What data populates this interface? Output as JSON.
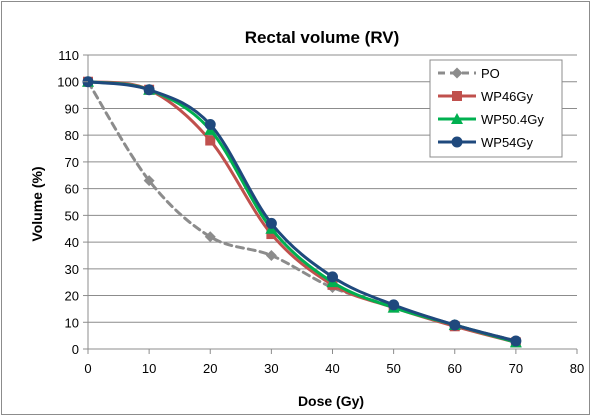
{
  "chart_data": {
    "type": "line",
    "title": "Rectal volume (RV)",
    "xlabel": "Dose (Gy)",
    "ylabel": "Volume (%)",
    "xlim": [
      0,
      80
    ],
    "ylim": [
      0,
      110
    ],
    "xticks": [
      0,
      10,
      20,
      30,
      40,
      50,
      60,
      70,
      80
    ],
    "yticks": [
      0,
      10,
      20,
      30,
      40,
      50,
      60,
      70,
      80,
      90,
      100,
      110
    ],
    "grid": "horizontal",
    "legend_position": "top-right",
    "series": [
      {
        "name": "PO",
        "color": "#8c8c8c",
        "marker": "diamond",
        "dashed": true,
        "x": [
          0,
          10,
          20,
          30,
          40,
          50,
          60,
          70
        ],
        "y": [
          100,
          63,
          42,
          35,
          23,
          16,
          9,
          3
        ]
      },
      {
        "name": "WP46Gy",
        "color": "#c0504d",
        "marker": "square",
        "dashed": false,
        "x": [
          0,
          10,
          20,
          30,
          40,
          50,
          60,
          70
        ],
        "y": [
          100,
          97,
          78,
          43,
          24,
          15.5,
          8.5,
          2.5
        ]
      },
      {
        "name": "WP50.4Gy",
        "color": "#00b050",
        "marker": "triangle",
        "dashed": false,
        "x": [
          0,
          10,
          20,
          30,
          40,
          50,
          60,
          70
        ],
        "y": [
          100,
          97,
          82,
          45,
          25,
          15.5,
          9,
          2.5
        ]
      },
      {
        "name": "WP54Gy",
        "color": "#1f497d",
        "marker": "circle",
        "dashed": false,
        "x": [
          0,
          10,
          20,
          30,
          40,
          50,
          60,
          70
        ],
        "y": [
          100,
          97,
          84,
          47,
          27,
          16.5,
          9,
          3
        ]
      }
    ]
  }
}
